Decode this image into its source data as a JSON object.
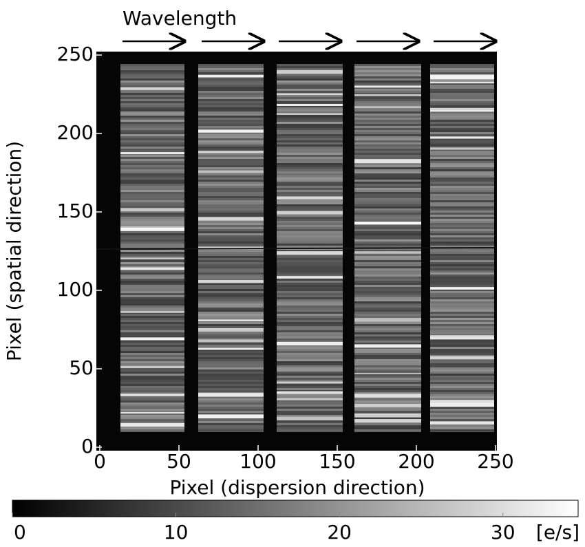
{
  "chart_data": {
    "type": "image",
    "annotation": "Wavelength",
    "xlabel": "Pixel (dispersion direction)",
    "ylabel": "Pixel (spatial direction)",
    "xlim": [
      0,
      250
    ],
    "xticks": [
      0,
      50,
      100,
      150,
      200,
      250
    ],
    "ylim": [
      0,
      250
    ],
    "yticks": [
      0,
      50,
      100,
      150,
      200,
      250
    ],
    "colorbar": {
      "lim": [
        0,
        34.6
      ],
      "ticks": [
        0,
        10,
        20,
        30
      ],
      "label": "[e/s]"
    }
  }
}
